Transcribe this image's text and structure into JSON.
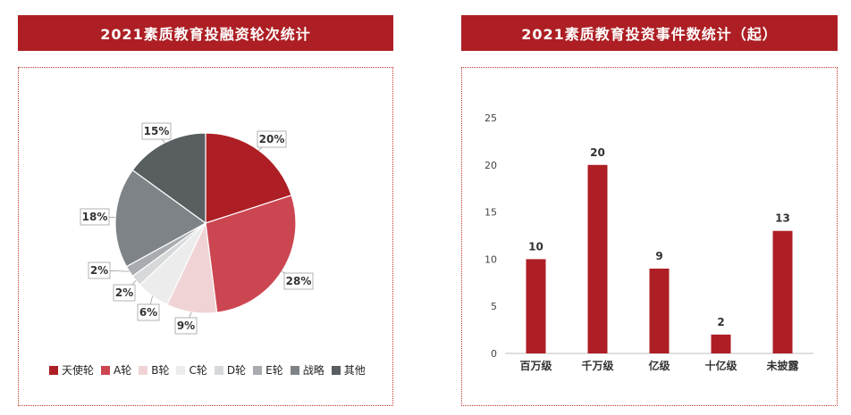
{
  "left_panel": {
    "title": "2021素质教育投融资轮次统计"
  },
  "right_panel": {
    "title": "2021素质教育投资事件数统计（起）"
  },
  "chart_data": [
    {
      "type": "pie",
      "title": "2021素质教育投融资轮次统计",
      "slices": [
        {
          "name": "天使轮",
          "value": 20,
          "label": "20%",
          "color": "#ad1f24"
        },
        {
          "name": "A轮",
          "value": 28,
          "label": "28%",
          "color": "#cc4651"
        },
        {
          "name": "B轮",
          "value": 9,
          "label": "9%",
          "color": "#f0d3d5"
        },
        {
          "name": "C轮",
          "value": 6,
          "label": "6%",
          "color": "#ececec"
        },
        {
          "name": "D轮",
          "value": 2,
          "label": "2%",
          "color": "#d6d8da"
        },
        {
          "name": "E轮",
          "value": 2,
          "label": "2%",
          "color": "#a8abaf"
        },
        {
          "name": "战略",
          "value": 18,
          "label": "18%",
          "color": "#7e8387"
        },
        {
          "name": "其他",
          "value": 15,
          "label": "15%",
          "color": "#595e61"
        }
      ],
      "legend_position": "bottom"
    },
    {
      "type": "bar",
      "title": "2021素质教育投资事件数统计（起）",
      "categories": [
        "百万级",
        "千万级",
        "亿级",
        "十亿级",
        "未披露"
      ],
      "values": [
        10,
        20,
        9,
        2,
        13
      ],
      "data_labels": [
        "10",
        "20",
        "9",
        "2",
        "13"
      ],
      "ylim": [
        0,
        25
      ],
      "yticks": [
        "0",
        "5",
        "10",
        "15",
        "20",
        "25"
      ],
      "bar_color": "#ad1f24",
      "grid": false
    }
  ]
}
